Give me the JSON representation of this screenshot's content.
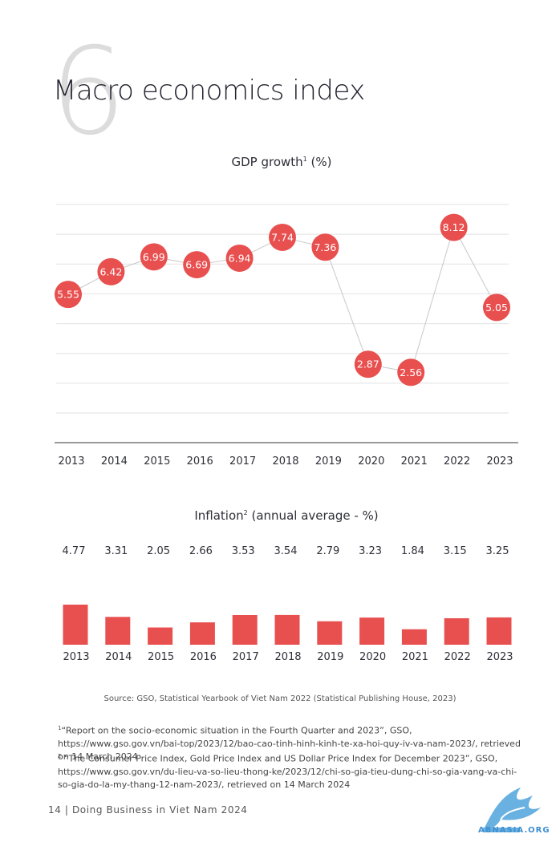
{
  "page": {
    "section_number": "6",
    "title": "Macro economics index",
    "source": "Source: GSO, Statistical Yearbook of Viet Nam 2022 (Statistical Publishing House, 2023)",
    "footnotes": [
      {
        "marker": "1",
        "text": "“Report on the socio-economic situation in the Fourth Quarter and 2023”, GSO, https://www.gso.gov.vn/bai-top/2023/12/bao-cao-tinh-hinh-kinh-te-xa-hoi-quy-iv-va-nam-2023/, retrieved on 14 March 2024"
      },
      {
        "marker": "2",
        "text": " “The Consumer Price Index, Gold Price Index and US Dollar Price Index for December 2023”, GSO, https://www.gso.gov.vn/du-lieu-va-so-lieu-thong-ke/2023/12/chi-so-gia-tieu-dung-chi-so-gia-vang-va-chi-so-gia-do-la-my-thang-12-nam-2023/, retrieved on 14 March 2024"
      }
    ],
    "footer": "14 | Doing Business in Viet Nam 2024",
    "watermark": "ABNASIA.ORG"
  },
  "colors": {
    "accent": "#e8504f",
    "grid": "#e2e2e2",
    "line": "#c8c8c8",
    "axis": "#9a9a9a",
    "logo": "#4fa3dc"
  },
  "chart_data": [
    {
      "type": "line",
      "title": "GDP growth",
      "title_sup": "1",
      "title_unit": " (%)",
      "categories": [
        "2013",
        "2014",
        "2015",
        "2016",
        "2017",
        "2018",
        "2019",
        "2020",
        "2021",
        "2022",
        "2023"
      ],
      "values": [
        5.55,
        6.42,
        6.99,
        6.69,
        6.94,
        7.74,
        7.36,
        2.87,
        2.56,
        8.12,
        5.05
      ],
      "data_labels": [
        "5.55",
        "6.42",
        "6.99",
        "6.69",
        "6.94",
        "7.74",
        "7.36",
        "2.87",
        "2.56",
        "8.12",
        "5.05"
      ],
      "ylim": [
        1,
        9
      ],
      "grid": true
    },
    {
      "type": "bar",
      "title": "Inflation",
      "title_sup": "2",
      "title_unit": " (annual average - %)",
      "categories": [
        "2013",
        "2014",
        "2015",
        "2016",
        "2017",
        "2018",
        "2019",
        "2020",
        "2021",
        "2022",
        "2023"
      ],
      "values": [
        4.77,
        3.31,
        2.05,
        2.66,
        3.53,
        3.54,
        2.79,
        3.23,
        1.84,
        3.15,
        3.25
      ],
      "data_labels": [
        "4.77",
        "3.31",
        "2.05",
        "2.66",
        "3.53",
        "3.54",
        "2.79",
        "3.23",
        "1.84",
        "3.15",
        "3.25"
      ],
      "grid": false
    }
  ]
}
